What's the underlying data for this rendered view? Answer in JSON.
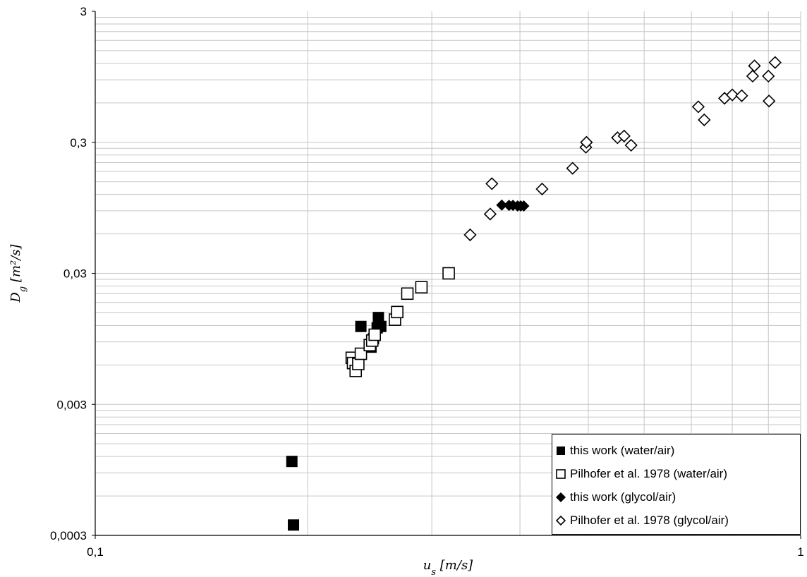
{
  "chart_data": {
    "type": "scatter",
    "x_scale": "log",
    "y_scale": "log",
    "xlim": [
      0.1,
      1
    ],
    "ylim": [
      0.0003,
      3
    ],
    "x_ticks": [
      "0,1",
      "1"
    ],
    "y_ticks": [
      "0,0003",
      "0,003",
      "0,03",
      "0,3",
      "3"
    ],
    "xlabel": "u_s [m/s]",
    "ylabel": "D_g [m²/s]",
    "grid": true,
    "legend_position": "bottom-right",
    "series": [
      {
        "name": "this work (water/air)",
        "marker": "filled-square",
        "color": "#000000",
        "points": [
          [
            0.19,
            0.0011
          ],
          [
            0.191,
            0.00036
          ],
          [
            0.238,
            0.0118
          ],
          [
            0.246,
            0.0082
          ],
          [
            0.248,
            0.0095
          ],
          [
            0.251,
            0.0115
          ],
          [
            0.252,
            0.0138
          ],
          [
            0.254,
            0.0118
          ]
        ]
      },
      {
        "name": "Pilhofer et al. 1978 (water/air)",
        "marker": "open-square",
        "color": "#000000",
        "points": [
          [
            0.231,
            0.0068
          ],
          [
            0.232,
            0.0062
          ],
          [
            0.234,
            0.0054
          ],
          [
            0.236,
            0.0061
          ],
          [
            0.238,
            0.0073
          ],
          [
            0.245,
            0.0085
          ],
          [
            0.247,
            0.0092
          ],
          [
            0.249,
            0.0102
          ],
          [
            0.266,
            0.0133
          ],
          [
            0.268,
            0.0152
          ],
          [
            0.277,
            0.021
          ],
          [
            0.29,
            0.0235
          ],
          [
            0.317,
            0.03
          ]
        ]
      },
      {
        "name": "this work (glycol/air)",
        "marker": "filled-diamond",
        "color": "#000000",
        "points": [
          [
            0.377,
            0.0995
          ],
          [
            0.386,
            0.099
          ],
          [
            0.391,
            0.099
          ],
          [
            0.397,
            0.098
          ],
          [
            0.401,
            0.098
          ],
          [
            0.405,
            0.098
          ]
        ]
      },
      {
        "name": "Pilhofer et al. 1978 (glycol/air)",
        "marker": "open-diamond",
        "color": "#000000",
        "points": [
          [
            0.34,
            0.059
          ],
          [
            0.363,
            0.085
          ],
          [
            0.365,
            0.145
          ],
          [
            0.43,
            0.132
          ],
          [
            0.475,
            0.19
          ],
          [
            0.496,
            0.275
          ],
          [
            0.497,
            0.3
          ],
          [
            0.55,
            0.325
          ],
          [
            0.562,
            0.335
          ],
          [
            0.575,
            0.285
          ],
          [
            0.716,
            0.56
          ],
          [
            0.73,
            0.445
          ],
          [
            0.78,
            0.65
          ],
          [
            0.8,
            0.69
          ],
          [
            0.825,
            0.68
          ],
          [
            0.855,
            0.96
          ],
          [
            0.86,
            1.15
          ],
          [
            0.9,
            0.96
          ],
          [
            0.902,
            0.62
          ],
          [
            0.92,
            1.22
          ]
        ]
      }
    ]
  }
}
